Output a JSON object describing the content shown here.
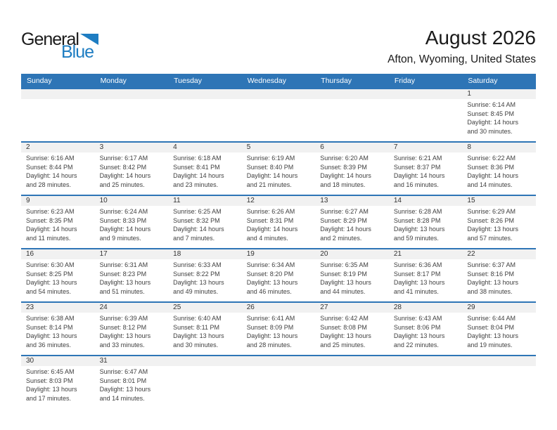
{
  "logo": {
    "general": "General",
    "blue": "Blue"
  },
  "header": {
    "title": "August 2026",
    "subtitle": "Afton, Wyoming, United States"
  },
  "colors": {
    "header_blue": "#2e75b6",
    "band_gray": "#f1f1f1",
    "logo_blue": "#1e7dc2"
  },
  "calendar": {
    "day_headers": [
      "Sunday",
      "Monday",
      "Tuesday",
      "Wednesday",
      "Thursday",
      "Friday",
      "Saturday"
    ],
    "weeks": [
      {
        "days": [
          null,
          null,
          null,
          null,
          null,
          null,
          {
            "date": "1",
            "sunrise": "Sunrise: 6:14 AM",
            "sunset": "Sunset: 8:45 PM",
            "daylight1": "Daylight: 14 hours",
            "daylight2": "and 30 minutes."
          }
        ]
      },
      {
        "days": [
          {
            "date": "2",
            "sunrise": "Sunrise: 6:16 AM",
            "sunset": "Sunset: 8:44 PM",
            "daylight1": "Daylight: 14 hours",
            "daylight2": "and 28 minutes."
          },
          {
            "date": "3",
            "sunrise": "Sunrise: 6:17 AM",
            "sunset": "Sunset: 8:42 PM",
            "daylight1": "Daylight: 14 hours",
            "daylight2": "and 25 minutes."
          },
          {
            "date": "4",
            "sunrise": "Sunrise: 6:18 AM",
            "sunset": "Sunset: 8:41 PM",
            "daylight1": "Daylight: 14 hours",
            "daylight2": "and 23 minutes."
          },
          {
            "date": "5",
            "sunrise": "Sunrise: 6:19 AM",
            "sunset": "Sunset: 8:40 PM",
            "daylight1": "Daylight: 14 hours",
            "daylight2": "and 21 minutes."
          },
          {
            "date": "6",
            "sunrise": "Sunrise: 6:20 AM",
            "sunset": "Sunset: 8:39 PM",
            "daylight1": "Daylight: 14 hours",
            "daylight2": "and 18 minutes."
          },
          {
            "date": "7",
            "sunrise": "Sunrise: 6:21 AM",
            "sunset": "Sunset: 8:37 PM",
            "daylight1": "Daylight: 14 hours",
            "daylight2": "and 16 minutes."
          },
          {
            "date": "8",
            "sunrise": "Sunrise: 6:22 AM",
            "sunset": "Sunset: 8:36 PM",
            "daylight1": "Daylight: 14 hours",
            "daylight2": "and 14 minutes."
          }
        ]
      },
      {
        "days": [
          {
            "date": "9",
            "sunrise": "Sunrise: 6:23 AM",
            "sunset": "Sunset: 8:35 PM",
            "daylight1": "Daylight: 14 hours",
            "daylight2": "and 11 minutes."
          },
          {
            "date": "10",
            "sunrise": "Sunrise: 6:24 AM",
            "sunset": "Sunset: 8:33 PM",
            "daylight1": "Daylight: 14 hours",
            "daylight2": "and 9 minutes."
          },
          {
            "date": "11",
            "sunrise": "Sunrise: 6:25 AM",
            "sunset": "Sunset: 8:32 PM",
            "daylight1": "Daylight: 14 hours",
            "daylight2": "and 7 minutes."
          },
          {
            "date": "12",
            "sunrise": "Sunrise: 6:26 AM",
            "sunset": "Sunset: 8:31 PM",
            "daylight1": "Daylight: 14 hours",
            "daylight2": "and 4 minutes."
          },
          {
            "date": "13",
            "sunrise": "Sunrise: 6:27 AM",
            "sunset": "Sunset: 8:29 PM",
            "daylight1": "Daylight: 14 hours",
            "daylight2": "and 2 minutes."
          },
          {
            "date": "14",
            "sunrise": "Sunrise: 6:28 AM",
            "sunset": "Sunset: 8:28 PM",
            "daylight1": "Daylight: 13 hours",
            "daylight2": "and 59 minutes."
          },
          {
            "date": "15",
            "sunrise": "Sunrise: 6:29 AM",
            "sunset": "Sunset: 8:26 PM",
            "daylight1": "Daylight: 13 hours",
            "daylight2": "and 57 minutes."
          }
        ]
      },
      {
        "days": [
          {
            "date": "16",
            "sunrise": "Sunrise: 6:30 AM",
            "sunset": "Sunset: 8:25 PM",
            "daylight1": "Daylight: 13 hours",
            "daylight2": "and 54 minutes."
          },
          {
            "date": "17",
            "sunrise": "Sunrise: 6:31 AM",
            "sunset": "Sunset: 8:23 PM",
            "daylight1": "Daylight: 13 hours",
            "daylight2": "and 51 minutes."
          },
          {
            "date": "18",
            "sunrise": "Sunrise: 6:33 AM",
            "sunset": "Sunset: 8:22 PM",
            "daylight1": "Daylight: 13 hours",
            "daylight2": "and 49 minutes."
          },
          {
            "date": "19",
            "sunrise": "Sunrise: 6:34 AM",
            "sunset": "Sunset: 8:20 PM",
            "daylight1": "Daylight: 13 hours",
            "daylight2": "and 46 minutes."
          },
          {
            "date": "20",
            "sunrise": "Sunrise: 6:35 AM",
            "sunset": "Sunset: 8:19 PM",
            "daylight1": "Daylight: 13 hours",
            "daylight2": "and 44 minutes."
          },
          {
            "date": "21",
            "sunrise": "Sunrise: 6:36 AM",
            "sunset": "Sunset: 8:17 PM",
            "daylight1": "Daylight: 13 hours",
            "daylight2": "and 41 minutes."
          },
          {
            "date": "22",
            "sunrise": "Sunrise: 6:37 AM",
            "sunset": "Sunset: 8:16 PM",
            "daylight1": "Daylight: 13 hours",
            "daylight2": "and 38 minutes."
          }
        ]
      },
      {
        "days": [
          {
            "date": "23",
            "sunrise": "Sunrise: 6:38 AM",
            "sunset": "Sunset: 8:14 PM",
            "daylight1": "Daylight: 13 hours",
            "daylight2": "and 36 minutes."
          },
          {
            "date": "24",
            "sunrise": "Sunrise: 6:39 AM",
            "sunset": "Sunset: 8:12 PM",
            "daylight1": "Daylight: 13 hours",
            "daylight2": "and 33 minutes."
          },
          {
            "date": "25",
            "sunrise": "Sunrise: 6:40 AM",
            "sunset": "Sunset: 8:11 PM",
            "daylight1": "Daylight: 13 hours",
            "daylight2": "and 30 minutes."
          },
          {
            "date": "26",
            "sunrise": "Sunrise: 6:41 AM",
            "sunset": "Sunset: 8:09 PM",
            "daylight1": "Daylight: 13 hours",
            "daylight2": "and 28 minutes."
          },
          {
            "date": "27",
            "sunrise": "Sunrise: 6:42 AM",
            "sunset": "Sunset: 8:08 PM",
            "daylight1": "Daylight: 13 hours",
            "daylight2": "and 25 minutes."
          },
          {
            "date": "28",
            "sunrise": "Sunrise: 6:43 AM",
            "sunset": "Sunset: 8:06 PM",
            "daylight1": "Daylight: 13 hours",
            "daylight2": "and 22 minutes."
          },
          {
            "date": "29",
            "sunrise": "Sunrise: 6:44 AM",
            "sunset": "Sunset: 8:04 PM",
            "daylight1": "Daylight: 13 hours",
            "daylight2": "and 19 minutes."
          }
        ]
      },
      {
        "days": [
          {
            "date": "30",
            "sunrise": "Sunrise: 6:45 AM",
            "sunset": "Sunset: 8:03 PM",
            "daylight1": "Daylight: 13 hours",
            "daylight2": "and 17 minutes."
          },
          {
            "date": "31",
            "sunrise": "Sunrise: 6:47 AM",
            "sunset": "Sunset: 8:01 PM",
            "daylight1": "Daylight: 13 hours",
            "daylight2": "and 14 minutes."
          },
          null,
          null,
          null,
          null,
          null
        ]
      }
    ]
  }
}
